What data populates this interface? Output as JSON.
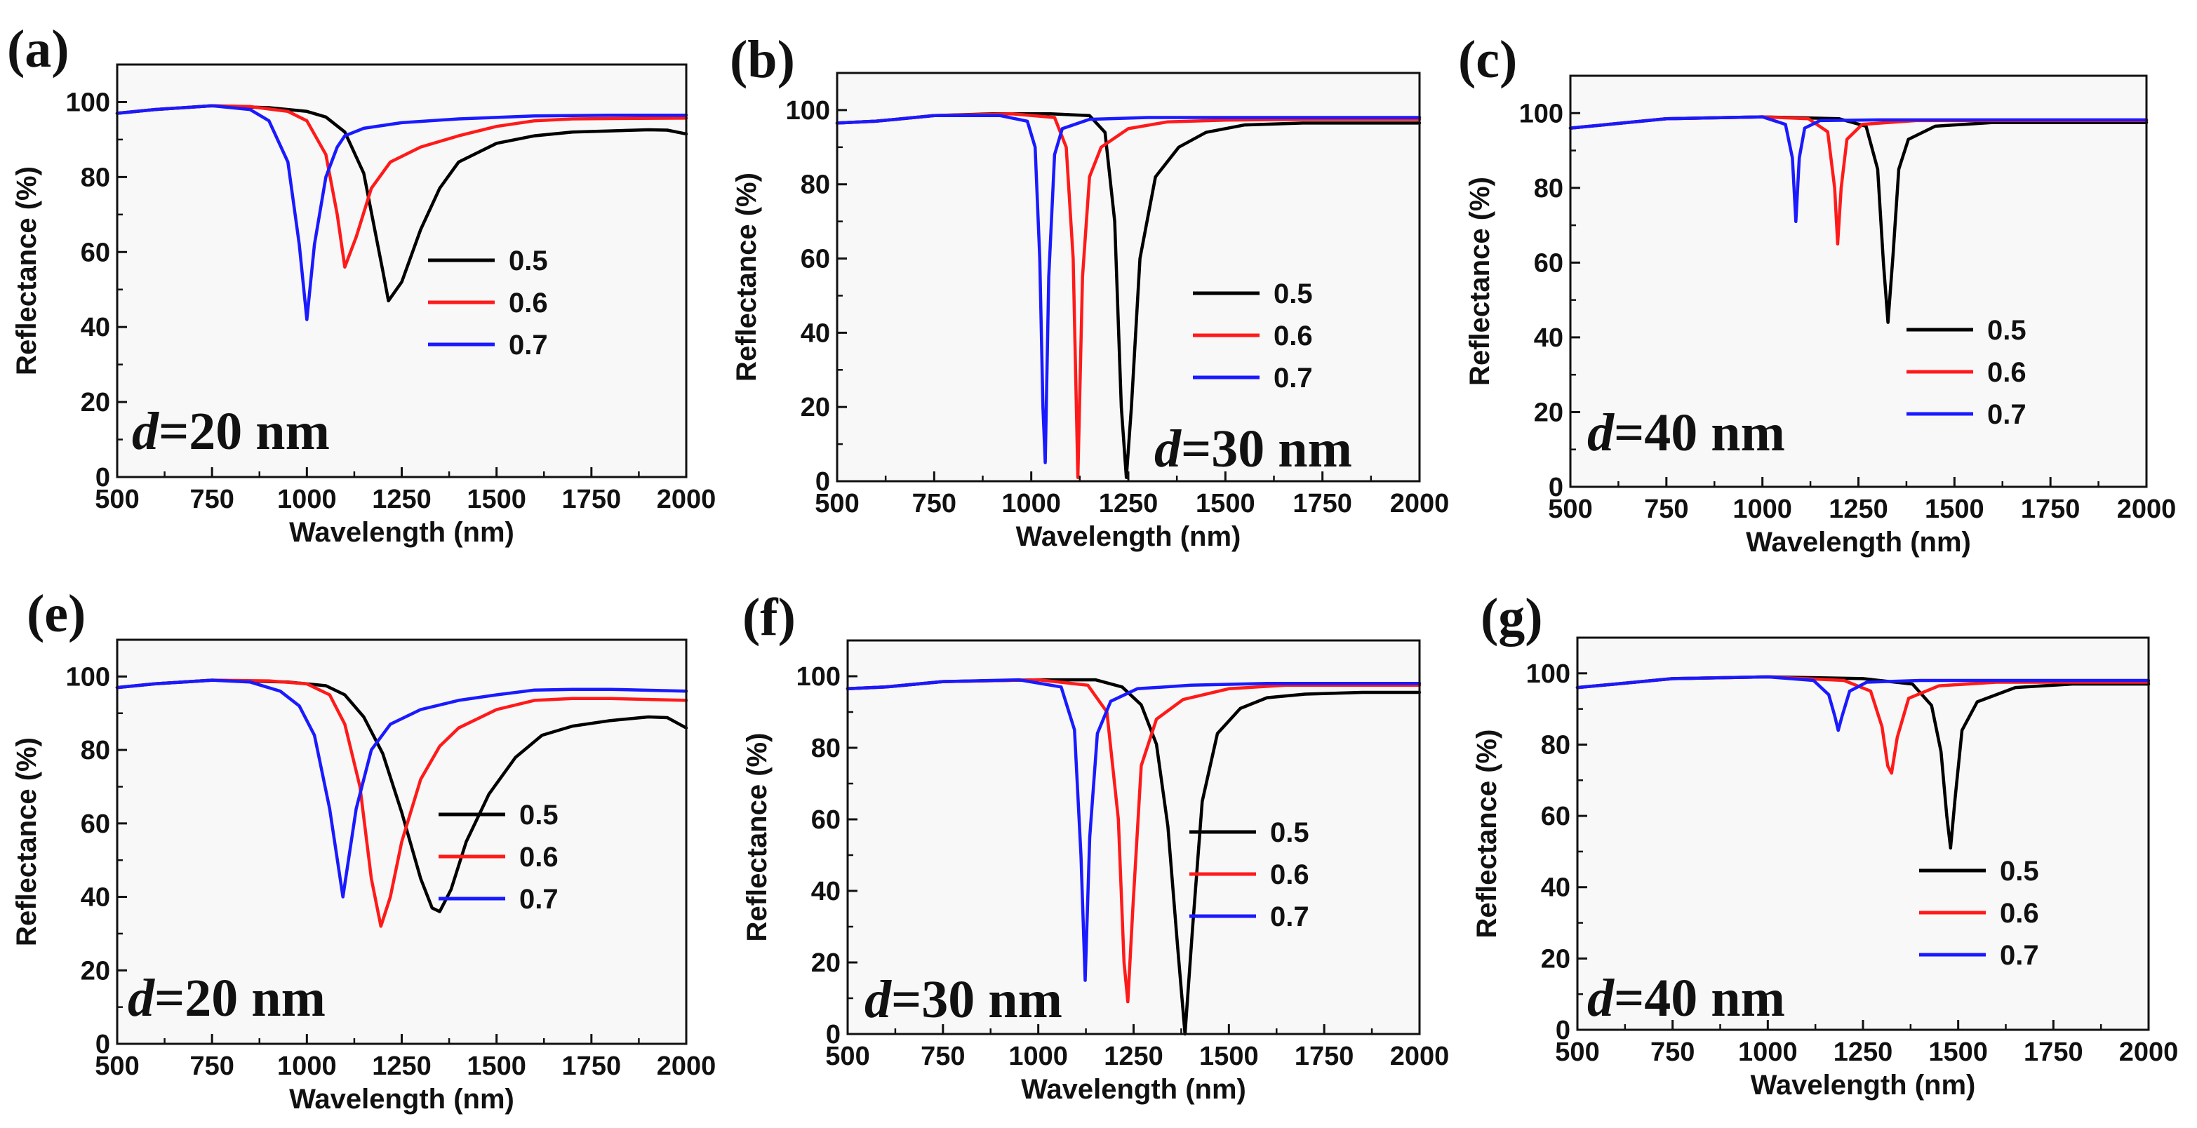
{
  "figure": {
    "x_axis_label": "Wavelength (nm)",
    "y_axis_label": "Reflectance (%)",
    "x_ticks": [
      "500",
      "750",
      "1000",
      "1250",
      "1500",
      "1750",
      "2000"
    ],
    "y_ticks": [
      "0",
      "20",
      "40",
      "60",
      "80",
      "100"
    ],
    "d_symbol": "d",
    "legend_labels": [
      "0.5",
      "0.6",
      "0.7"
    ],
    "series_colors": [
      "#000000",
      "#ff1a1a",
      "#1a1aff"
    ]
  },
  "chart_data": [
    {
      "type": "line",
      "panel_label": "(a)",
      "d_value": "=20 nm",
      "xlim": [
        500,
        2000
      ],
      "ylim": [
        0,
        110
      ],
      "xlabel": "Wavelength (nm)",
      "ylabel": "Reflectance (%)",
      "legend_position": "right-middle",
      "series": [
        {
          "name": "0.5",
          "color": "#000000",
          "x": [
            500,
            600,
            750,
            900,
            1000,
            1050,
            1100,
            1150,
            1200,
            1215,
            1250,
            1300,
            1350,
            1400,
            1500,
            1600,
            1700,
            1800,
            1900,
            1950,
            2000
          ],
          "y": [
            97,
            98,
            99,
            98.5,
            97.5,
            96,
            92,
            81,
            55,
            47,
            52,
            66,
            77,
            84,
            89,
            91,
            92,
            92.3,
            92.6,
            92.5,
            91.5
          ]
        },
        {
          "name": "0.6",
          "color": "#ff1a1a",
          "x": [
            500,
            600,
            750,
            850,
            950,
            1000,
            1050,
            1080,
            1100,
            1130,
            1170,
            1220,
            1300,
            1400,
            1500,
            1600,
            1700,
            1800,
            2000
          ],
          "y": [
            97,
            98,
            99,
            98.8,
            97.5,
            95,
            86,
            70,
            56,
            64,
            77,
            84,
            88,
            91,
            93.5,
            95,
            95.5,
            95.6,
            95.7
          ]
        },
        {
          "name": "0.7",
          "color": "#1a1aff",
          "x": [
            500,
            600,
            750,
            850,
            900,
            950,
            980,
            1000,
            1020,
            1050,
            1080,
            1100,
            1150,
            1250,
            1400,
            1600,
            1800,
            2000
          ],
          "y": [
            97,
            98,
            99,
            98,
            95,
            84,
            62,
            42,
            62,
            80,
            88,
            91,
            93,
            94.5,
            95.5,
            96.3,
            96.5,
            96.5
          ]
        }
      ]
    },
    {
      "type": "line",
      "panel_label": "(b)",
      "d_value": "=30 nm",
      "xlim": [
        500,
        2000
      ],
      "ylim": [
        0,
        110
      ],
      "xlabel": "Wavelength (nm)",
      "ylabel": "Reflectance (%)",
      "legend_position": "right-middle",
      "series": [
        {
          "name": "0.5",
          "color": "#000000",
          "x": [
            500,
            600,
            750,
            900,
            1050,
            1150,
            1190,
            1215,
            1232,
            1245,
            1258,
            1280,
            1320,
            1380,
            1450,
            1550,
            1700,
            2000
          ],
          "y": [
            96.5,
            97,
            98.5,
            99,
            99,
            98.5,
            94,
            70,
            20,
            1,
            20,
            60,
            82,
            90,
            94,
            96,
            96.5,
            96.5
          ]
        },
        {
          "name": "0.6",
          "color": "#ff1a1a",
          "x": [
            500,
            600,
            750,
            950,
            1060,
            1090,
            1108,
            1120,
            1132,
            1150,
            1180,
            1250,
            1350,
            1500,
            1700,
            2000
          ],
          "y": [
            96.5,
            97,
            98.5,
            99,
            98,
            90,
            60,
            1,
            55,
            82,
            90,
            95,
            96.8,
            97.3,
            97.5,
            97.5
          ]
        },
        {
          "name": "0.7",
          "color": "#1a1aff",
          "x": [
            500,
            600,
            750,
            920,
            990,
            1010,
            1022,
            1030,
            1036,
            1045,
            1060,
            1080,
            1150,
            1300,
            1600,
            2000
          ],
          "y": [
            96.5,
            97,
            98.5,
            98.5,
            97,
            90,
            60,
            20,
            5,
            55,
            88,
            95,
            97.5,
            98,
            98,
            98
          ]
        }
      ]
    },
    {
      "type": "line",
      "panel_label": "(c)",
      "d_value": "=40 nm",
      "xlim": [
        500,
        2000
      ],
      "ylim": [
        0,
        110
      ],
      "xlabel": "Wavelength (nm)",
      "ylabel": "Reflectance (%)",
      "legend_position": "right-middle",
      "series": [
        {
          "name": "0.5",
          "color": "#000000",
          "x": [
            500,
            600,
            750,
            1000,
            1200,
            1270,
            1300,
            1315,
            1327,
            1340,
            1355,
            1380,
            1450,
            1600,
            2000
          ],
          "y": [
            96,
            97,
            98.5,
            99,
            98.5,
            96.5,
            85,
            60,
            44,
            62,
            85,
            93,
            96.5,
            97.5,
            97.5
          ]
        },
        {
          "name": "0.6",
          "color": "#ff1a1a",
          "x": [
            500,
            600,
            750,
            1000,
            1120,
            1170,
            1188,
            1196,
            1205,
            1220,
            1260,
            1400,
            2000
          ],
          "y": [
            96,
            97,
            98.5,
            99,
            98.5,
            95,
            80,
            65,
            80,
            93,
            97,
            98,
            98
          ]
        },
        {
          "name": "0.7",
          "color": "#1a1aff",
          "x": [
            500,
            600,
            750,
            1000,
            1060,
            1078,
            1087,
            1096,
            1110,
            1150,
            1300,
            2000
          ],
          "y": [
            96,
            97,
            98.5,
            99,
            97,
            88,
            71,
            88,
            96,
            98,
            98.2,
            98.2
          ]
        }
      ]
    },
    {
      "type": "line",
      "panel_label": "(e)",
      "d_value": "=20 nm",
      "xlim": [
        500,
        2000
      ],
      "ylim": [
        0,
        110
      ],
      "xlabel": "Wavelength (nm)",
      "ylabel": "Reflectance (%)",
      "legend_position": "right-middle",
      "series": [
        {
          "name": "0.5",
          "color": "#000000",
          "x": [
            500,
            600,
            750,
            950,
            1050,
            1100,
            1150,
            1200,
            1250,
            1300,
            1330,
            1350,
            1380,
            1420,
            1480,
            1550,
            1620,
            1700,
            1800,
            1900,
            1950,
            2000
          ],
          "y": [
            97,
            98,
            99,
            98.5,
            97.5,
            95,
            89,
            79,
            63,
            45,
            37,
            36,
            42,
            55,
            68,
            78,
            84,
            86.5,
            88,
            89,
            88.8,
            86
          ]
        },
        {
          "name": "0.6",
          "color": "#ff1a1a",
          "x": [
            500,
            600,
            750,
            900,
            1000,
            1060,
            1100,
            1140,
            1170,
            1195,
            1220,
            1250,
            1300,
            1350,
            1400,
            1500,
            1600,
            1700,
            1800,
            2000
          ],
          "y": [
            97,
            98,
            99,
            98.8,
            98,
            95,
            87,
            70,
            45,
            32,
            40,
            55,
            72,
            81,
            86,
            91,
            93.5,
            94,
            94,
            93.5
          ]
        },
        {
          "name": "0.7",
          "color": "#1a1aff",
          "x": [
            500,
            600,
            750,
            850,
            930,
            980,
            1020,
            1060,
            1095,
            1130,
            1170,
            1220,
            1300,
            1400,
            1500,
            1600,
            1700,
            1800,
            2000
          ],
          "y": [
            97,
            98,
            99,
            98.5,
            96,
            92,
            84,
            64,
            40,
            64,
            80,
            87,
            91,
            93.5,
            95,
            96.3,
            96.5,
            96.5,
            96
          ]
        }
      ]
    },
    {
      "type": "line",
      "panel_label": "(f)",
      "d_value": "=30 nm",
      "xlim": [
        500,
        2000
      ],
      "ylim": [
        0,
        110
      ],
      "xlabel": "Wavelength (nm)",
      "ylabel": "Reflectance (%)",
      "legend_position": "right-middle",
      "series": [
        {
          "name": "0.5",
          "color": "#000000",
          "x": [
            500,
            600,
            750,
            1000,
            1150,
            1220,
            1270,
            1310,
            1340,
            1365,
            1385,
            1405,
            1430,
            1470,
            1530,
            1600,
            1700,
            1850,
            2000
          ],
          "y": [
            96.5,
            97,
            98.5,
            99,
            99,
            97,
            92,
            81,
            58,
            25,
            0,
            30,
            65,
            84,
            91,
            94,
            95,
            95.5,
            95.5
          ]
        },
        {
          "name": "0.6",
          "color": "#ff1a1a",
          "x": [
            500,
            600,
            750,
            1000,
            1130,
            1180,
            1210,
            1225,
            1235,
            1248,
            1270,
            1310,
            1380,
            1500,
            1650,
            2000
          ],
          "y": [
            96.5,
            97,
            98.5,
            99,
            97.5,
            90,
            60,
            20,
            9,
            35,
            75,
            88,
            93.5,
            96.5,
            97.5,
            97.5
          ]
        },
        {
          "name": "0.7",
          "color": "#1a1aff",
          "x": [
            500,
            600,
            750,
            950,
            1060,
            1095,
            1112,
            1123,
            1135,
            1155,
            1190,
            1260,
            1400,
            1600,
            2000
          ],
          "y": [
            96.5,
            97,
            98.5,
            99,
            97,
            85,
            50,
            15,
            55,
            84,
            93,
            96.5,
            97.5,
            98,
            98
          ]
        }
      ]
    },
    {
      "type": "line",
      "panel_label": "(g)",
      "d_value": "=40 nm",
      "xlim": [
        500,
        2000
      ],
      "ylim": [
        0,
        110
      ],
      "xlabel": "Wavelength (nm)",
      "ylabel": "Reflectance (%)",
      "legend_position": "right-middle",
      "series": [
        {
          "name": "0.5",
          "color": "#000000",
          "x": [
            500,
            600,
            750,
            1000,
            1250,
            1380,
            1430,
            1455,
            1470,
            1480,
            1492,
            1510,
            1550,
            1650,
            1800,
            2000
          ],
          "y": [
            96,
            97,
            98.5,
            99,
            98.5,
            97,
            91,
            78,
            60,
            51,
            65,
            84,
            92,
            96,
            97,
            97
          ]
        },
        {
          "name": "0.6",
          "color": "#ff1a1a",
          "x": [
            500,
            600,
            750,
            1000,
            1200,
            1270,
            1300,
            1315,
            1325,
            1340,
            1370,
            1450,
            1600,
            2000
          ],
          "y": [
            96,
            97,
            98.5,
            99,
            98,
            95,
            85,
            74,
            72,
            82,
            93,
            96.5,
            97.5,
            97.5
          ]
        },
        {
          "name": "0.7",
          "color": "#1a1aff",
          "x": [
            500,
            600,
            750,
            1000,
            1120,
            1160,
            1176,
            1185,
            1195,
            1215,
            1260,
            1400,
            2000
          ],
          "y": [
            96,
            97,
            98.5,
            99,
            98,
            94,
            88,
            84,
            88,
            95,
            97.5,
            98,
            98
          ]
        }
      ]
    }
  ]
}
